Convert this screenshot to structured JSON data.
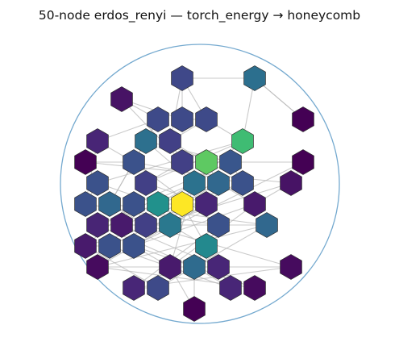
{
  "title": "50-node erdos_renyi — torch_energy → honeycomb",
  "colors": {
    "boundary": "#74a9cf",
    "edge": "#b8b8b8",
    "hex_outline": "#2b2b2b"
  },
  "chart_data": {
    "type": "graph",
    "nodes": [
      {
        "id": 0,
        "color": "#3f4889"
      },
      {
        "id": 1,
        "color": "#2c6f8e"
      },
      {
        "id": 2,
        "color": "#471365"
      },
      {
        "id": 3,
        "color": "#440154"
      },
      {
        "id": 4,
        "color": "#3e4a89"
      },
      {
        "id": 5,
        "color": "#3e4a89"
      },
      {
        "id": 6,
        "color": "#3e4a89"
      },
      {
        "id": 7,
        "color": "#482576"
      },
      {
        "id": 8,
        "color": "#2d708e"
      },
      {
        "id": 9,
        "color": "#424086"
      },
      {
        "id": 10,
        "color": "#3fbc73"
      },
      {
        "id": 11,
        "color": "#440154"
      },
      {
        "id": 12,
        "color": "#3b528b"
      },
      {
        "id": 13,
        "color": "#424086"
      },
      {
        "id": 14,
        "color": "#5ec962"
      },
      {
        "id": 15,
        "color": "#39568c"
      },
      {
        "id": 16,
        "color": "#440154"
      },
      {
        "id": 17,
        "color": "#3b528b"
      },
      {
        "id": 18,
        "color": "#424086"
      },
      {
        "id": 19,
        "color": "#2c728e"
      },
      {
        "id": 20,
        "color": "#31688e"
      },
      {
        "id": 21,
        "color": "#3b528b"
      },
      {
        "id": 22,
        "color": "#471365"
      },
      {
        "id": 23,
        "color": "#3b528b"
      },
      {
        "id": 24,
        "color": "#31688e"
      },
      {
        "id": 25,
        "color": "#3b528b"
      },
      {
        "id": 26,
        "color": "#21918c"
      },
      {
        "id": 27,
        "color": "#fde725"
      },
      {
        "id": 28,
        "color": "#482677"
      },
      {
        "id": 29,
        "color": "#481a6c"
      },
      {
        "id": 30,
        "color": "#482575"
      },
      {
        "id": 31,
        "color": "#481a6c"
      },
      {
        "id": 32,
        "color": "#424086"
      },
      {
        "id": 33,
        "color": "#2a788e"
      },
      {
        "id": 34,
        "color": "#3b528b"
      },
      {
        "id": 35,
        "color": "#31688e"
      },
      {
        "id": 36,
        "color": "#481a6c"
      },
      {
        "id": 37,
        "color": "#3b528b"
      },
      {
        "id": 38,
        "color": "#3b528b"
      },
      {
        "id": 39,
        "color": "#23898e"
      },
      {
        "id": 40,
        "color": "#460b5e"
      },
      {
        "id": 41,
        "color": "#481a6c"
      },
      {
        "id": 42,
        "color": "#2f6b8e"
      },
      {
        "id": 43,
        "color": "#482677"
      },
      {
        "id": 44,
        "color": "#460b5e"
      },
      {
        "id": 45,
        "color": "#482677"
      },
      {
        "id": 46,
        "color": "#3e4a89"
      },
      {
        "id": 47,
        "color": "#482677"
      },
      {
        "id": 48,
        "color": "#460b5e"
      },
      {
        "id": 49,
        "color": "#440154"
      }
    ],
    "edges": [
      [
        0,
        6
      ],
      [
        0,
        1
      ],
      [
        0,
        9
      ],
      [
        0,
        5
      ],
      [
        1,
        10
      ],
      [
        1,
        3
      ],
      [
        2,
        5
      ],
      [
        2,
        4
      ],
      [
        4,
        7
      ],
      [
        4,
        8
      ],
      [
        5,
        6
      ],
      [
        6,
        10
      ],
      [
        7,
        12
      ],
      [
        8,
        15
      ],
      [
        9,
        14
      ],
      [
        10,
        17
      ],
      [
        10,
        18
      ],
      [
        11,
        12
      ],
      [
        13,
        14
      ],
      [
        14,
        16
      ],
      [
        14,
        20
      ],
      [
        15,
        21
      ],
      [
        16,
        22
      ],
      [
        17,
        23
      ],
      [
        18,
        28
      ],
      [
        19,
        30
      ],
      [
        20,
        27
      ],
      [
        20,
        29
      ],
      [
        21,
        31
      ],
      [
        22,
        29
      ],
      [
        23,
        34
      ],
      [
        24,
        35
      ],
      [
        25,
        36
      ],
      [
        26,
        27
      ],
      [
        27,
        28
      ],
      [
        27,
        39
      ],
      [
        28,
        40
      ],
      [
        29,
        41
      ],
      [
        30,
        42
      ],
      [
        31,
        43
      ],
      [
        32,
        44
      ],
      [
        33,
        39
      ],
      [
        34,
        45
      ],
      [
        35,
        46
      ],
      [
        36,
        37
      ],
      [
        37,
        47
      ],
      [
        38,
        41
      ],
      [
        39,
        42
      ],
      [
        40,
        48
      ],
      [
        41,
        49
      ],
      [
        42,
        47
      ],
      [
        43,
        44
      ],
      [
        44,
        45
      ],
      [
        45,
        46
      ],
      [
        26,
        33
      ],
      [
        13,
        18
      ],
      [
        9,
        13
      ],
      [
        24,
        32
      ],
      [
        25,
        32
      ],
      [
        38,
        48
      ],
      [
        11,
        22
      ],
      [
        7,
        23
      ],
      [
        3,
        1
      ],
      [
        12,
        21
      ],
      [
        19,
        26
      ],
      [
        8,
        24
      ],
      [
        2,
        13
      ],
      [
        6,
        9
      ],
      [
        15,
        25
      ],
      [
        16,
        38
      ],
      [
        17,
        26
      ],
      [
        29,
        38
      ],
      [
        4,
        24
      ],
      [
        12,
        34
      ],
      [
        20,
        30
      ],
      [
        28,
        33
      ],
      [
        10,
        19
      ],
      [
        36,
        46
      ],
      [
        43,
        47
      ],
      [
        21,
        37
      ],
      [
        31,
        35
      ],
      [
        40,
        43
      ],
      [
        30,
        33
      ],
      [
        22,
        36
      ],
      [
        8,
        19
      ],
      [
        35,
        40
      ],
      [
        19,
        41
      ],
      [
        42,
        49
      ]
    ]
  }
}
